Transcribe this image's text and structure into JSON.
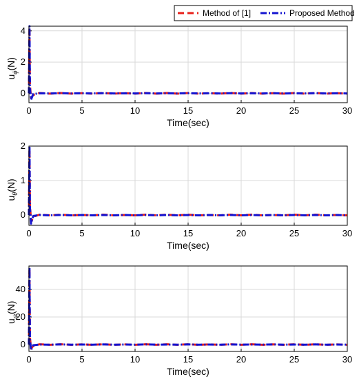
{
  "legend": {
    "entries": [
      {
        "label": "Method of [1]",
        "color": "#e8201a",
        "style": "dashed"
      },
      {
        "label": "Proposed Method",
        "color": "#1414d0",
        "style": "dash-dot"
      }
    ]
  },
  "chart_data": [
    {
      "type": "line",
      "xlabel": "Time(sec)",
      "ylabel_main": "u",
      "ylabel_sub": "ϕ",
      "ylabel_unit": "(N)",
      "xlim": [
        0,
        30
      ],
      "ylim": [
        -0.6,
        4.3
      ],
      "xticks": [
        "0",
        "5",
        "10",
        "15",
        "20",
        "25",
        "30"
      ],
      "yticks": [
        "0",
        "2",
        "4"
      ],
      "grid": true,
      "series": [
        {
          "name": "Method of [1]",
          "color": "#e8201a",
          "x": [
            0,
            0.05,
            0.1,
            0.2,
            0.4,
            1,
            2,
            3,
            4,
            5,
            6,
            7,
            8,
            9,
            10,
            11,
            12,
            13,
            14,
            15,
            16,
            17,
            18,
            19,
            20,
            21,
            22,
            23,
            24,
            25,
            26,
            27,
            28,
            29,
            30
          ],
          "y": [
            0,
            4.2,
            0.5,
            -0.3,
            -0.1,
            0.02,
            -0.02,
            0.02,
            -0.02,
            0.01,
            -0.02,
            0.02,
            -0.02,
            0.01,
            -0.02,
            0.02,
            -0.02,
            0.02,
            -0.02,
            0.02,
            -0.02,
            0.01,
            -0.02,
            0.02,
            -0.02,
            0.02,
            -0.02,
            0.01,
            -0.02,
            0.02,
            -0.02,
            0.02,
            -0.02,
            0.01,
            -0.02
          ]
        },
        {
          "name": "Proposed Method",
          "color": "#1414d0",
          "x": [
            0,
            0.05,
            0.1,
            0.2,
            0.4,
            1,
            2,
            3,
            4,
            5,
            6,
            7,
            8,
            9,
            10,
            11,
            12,
            13,
            14,
            15,
            16,
            17,
            18,
            19,
            20,
            21,
            22,
            23,
            24,
            25,
            26,
            27,
            28,
            29,
            30
          ],
          "y": [
            0,
            4.3,
            0.3,
            -0.4,
            -0.05,
            0.0,
            -0.01,
            0.01,
            -0.01,
            0.0,
            -0.01,
            0.01,
            -0.01,
            0.0,
            -0.01,
            0.01,
            -0.01,
            0.0,
            -0.01,
            0.01,
            -0.01,
            0.0,
            -0.01,
            0.01,
            -0.01,
            0.0,
            -0.01,
            0.01,
            -0.01,
            0.0,
            -0.01,
            0.01,
            -0.01,
            0.0,
            -0.01
          ]
        }
      ]
    },
    {
      "type": "line",
      "xlabel": "Time(sec)",
      "ylabel_main": "u",
      "ylabel_sub": "θ",
      "ylabel_unit": "(N)",
      "xlim": [
        0,
        30
      ],
      "ylim": [
        -0.3,
        2.0
      ],
      "xticks": [
        "0",
        "5",
        "10",
        "15",
        "20",
        "25",
        "30"
      ],
      "yticks": [
        "0",
        "1",
        "2"
      ],
      "grid": true,
      "series": [
        {
          "name": "Method of [1]",
          "color": "#e8201a",
          "x": [
            0,
            0.05,
            0.1,
            0.2,
            0.4,
            1,
            2,
            3,
            4,
            5,
            6,
            7,
            8,
            9,
            10,
            11,
            12,
            13,
            14,
            15,
            16,
            17,
            18,
            19,
            20,
            21,
            22,
            23,
            24,
            25,
            26,
            27,
            28,
            29,
            30
          ],
          "y": [
            0,
            1.9,
            0.3,
            -0.2,
            -0.05,
            0.01,
            -0.01,
            0.01,
            -0.01,
            0.0,
            -0.01,
            0.01,
            -0.01,
            0.0,
            -0.01,
            0.01,
            -0.01,
            0.01,
            -0.01,
            0.01,
            -0.01,
            0.0,
            -0.01,
            0.01,
            -0.01,
            0.01,
            -0.01,
            0.0,
            -0.01,
            0.01,
            -0.01,
            0.01,
            -0.01,
            0.0,
            -0.01
          ]
        },
        {
          "name": "Proposed Method",
          "color": "#1414d0",
          "x": [
            0,
            0.05,
            0.1,
            0.2,
            0.4,
            1,
            2,
            3,
            4,
            5,
            6,
            7,
            8,
            9,
            10,
            11,
            12,
            13,
            14,
            15,
            16,
            17,
            18,
            19,
            20,
            21,
            22,
            23,
            24,
            25,
            26,
            27,
            28,
            29,
            30
          ],
          "y": [
            0,
            2.0,
            0.2,
            -0.25,
            -0.03,
            0.0,
            -0.01,
            0.0,
            -0.01,
            0.0,
            -0.01,
            0.0,
            -0.01,
            0.0,
            -0.01,
            0.0,
            -0.01,
            0.0,
            -0.01,
            0.0,
            -0.01,
            0.0,
            -0.01,
            0.0,
            -0.01,
            0.0,
            -0.01,
            0.0,
            -0.01,
            0.0,
            -0.01,
            0.0,
            -0.01,
            0.0,
            -0.01
          ]
        }
      ]
    },
    {
      "type": "line",
      "xlabel": "Time(sec)",
      "ylabel_main": "u",
      "ylabel_sub": "ψ",
      "ylabel_unit": "(N)",
      "xlim": [
        0,
        30
      ],
      "ylim": [
        -5,
        57
      ],
      "xticks": [
        "0",
        "5",
        "10",
        "15",
        "20",
        "25",
        "30"
      ],
      "yticks": [
        "0",
        "20",
        "40"
      ],
      "grid": true,
      "series": [
        {
          "name": "Method of [1]",
          "color": "#e8201a",
          "x": [
            0,
            0.05,
            0.1,
            0.2,
            0.4,
            1,
            2,
            3,
            4,
            5,
            6,
            7,
            8,
            9,
            10,
            11,
            12,
            13,
            14,
            15,
            16,
            17,
            18,
            19,
            20,
            21,
            22,
            23,
            24,
            25,
            26,
            27,
            28,
            29,
            30
          ],
          "y": [
            0,
            55,
            5,
            -3,
            -1,
            0.2,
            -0.2,
            0.2,
            -0.2,
            0.1,
            -0.2,
            0.2,
            -0.2,
            0.1,
            -0.2,
            0.2,
            -0.2,
            0.2,
            -0.2,
            0.2,
            -0.2,
            0.1,
            -0.2,
            0.2,
            -0.2,
            0.2,
            -0.2,
            0.1,
            -0.2,
            0.2,
            -0.2,
            0.2,
            -0.2,
            0.1,
            -0.2
          ]
        },
        {
          "name": "Proposed Method",
          "color": "#1414d0",
          "x": [
            0,
            0.05,
            0.1,
            0.2,
            0.4,
            1,
            2,
            3,
            4,
            5,
            6,
            7,
            8,
            9,
            10,
            11,
            12,
            13,
            14,
            15,
            16,
            17,
            18,
            19,
            20,
            21,
            22,
            23,
            24,
            25,
            26,
            27,
            28,
            29,
            30
          ],
          "y": [
            0,
            56,
            3,
            -4,
            -0.5,
            0.0,
            -0.1,
            0.1,
            -0.1,
            0.0,
            -0.1,
            0.1,
            -0.1,
            0.0,
            -0.1,
            0.1,
            -0.1,
            0.0,
            -0.1,
            0.1,
            -0.1,
            0.0,
            -0.1,
            0.1,
            -0.1,
            0.0,
            -0.1,
            0.1,
            -0.1,
            0.0,
            -0.1,
            0.1,
            -0.1,
            0.0,
            -0.1
          ]
        }
      ]
    }
  ]
}
